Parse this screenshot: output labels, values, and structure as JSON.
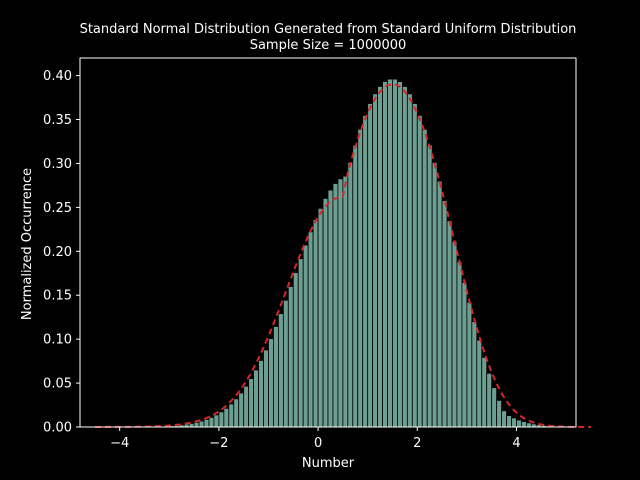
{
  "chart_data": {
    "type": "bar",
    "title": "Standard Normal Distribution Generated from Standard Uniform Distribution",
    "subtitle": "Sample Size = 1000000",
    "xlabel": "Number",
    "ylabel": "Normalized Occurrence",
    "xlim": [
      -4.8,
      5.2
    ],
    "ylim": [
      0,
      0.42
    ],
    "xticks": [
      -4,
      -2,
      0,
      2,
      4
    ],
    "xtick_labels": [
      "−4",
      "−2",
      "0",
      "2",
      "4"
    ],
    "yticks": [
      0.0,
      0.05,
      0.1,
      0.15,
      0.2,
      0.25,
      0.3,
      0.35,
      0.4
    ],
    "ytick_labels": [
      "0.00",
      "0.05",
      "0.10",
      "0.15",
      "0.20",
      "0.25",
      "0.30",
      "0.35",
      "0.40"
    ],
    "grid": false,
    "histogram": {
      "bin_start": -4.5,
      "bin_width": 0.1,
      "values": [
        0.0,
        0.0,
        0.0,
        0.0,
        0.0,
        0.0001,
        0.0001,
        0.0001,
        0.0001,
        0.0002,
        0.0003,
        0.0004,
        0.0006,
        0.0008,
        0.001,
        0.0014,
        0.0018,
        0.0024,
        0.0032,
        0.0041,
        0.0053,
        0.0068,
        0.0086,
        0.011,
        0.0138,
        0.0172,
        0.0213,
        0.0262,
        0.032,
        0.0387,
        0.0464,
        0.0551,
        0.0649,
        0.0758,
        0.0877,
        0.1006,
        0.1144,
        0.129,
        0.1443,
        0.1599,
        0.1758,
        0.1916,
        0.2071,
        0.2221,
        0.2361,
        0.2489,
        0.2602,
        0.2697,
        0.2772,
        0.2825,
        0.2855,
        0.3011,
        0.3209,
        0.3388,
        0.3546,
        0.3682,
        0.3792,
        0.3876,
        0.3932,
        0.396,
        0.396,
        0.3932,
        0.3876,
        0.3792,
        0.3682,
        0.3546,
        0.3388,
        0.3209,
        0.3011,
        0.28,
        0.2577,
        0.2347,
        0.2113,
        0.1879,
        0.1647,
        0.142,
        0.12,
        0.099,
        0.0793,
        0.0611,
        0.0447,
        0.0303,
        0.0185,
        0.013,
        0.0103,
        0.008,
        0.0062,
        0.0047,
        0.0035,
        0.0026,
        0.0019,
        0.0014,
        0.001,
        0.0007,
        0.0005,
        0.0003,
        0.0002,
        0.0001,
        0.0001,
        0.0001,
        0.0
      ],
      "color": "#6d9e92",
      "edge_color": "#000000"
    },
    "curve": {
      "type": "line",
      "x_start": -4.5,
      "x_step": 0.1,
      "y": [
        0.0,
        0.0,
        0.0,
        0.0001,
        0.0001,
        0.0001,
        0.0002,
        0.0002,
        0.0003,
        0.0004,
        0.0004,
        0.0006,
        0.0008,
        0.001,
        0.0013,
        0.0017,
        0.0022,
        0.0028,
        0.0036,
        0.0045,
        0.0058,
        0.0073,
        0.0091,
        0.0115,
        0.0143,
        0.0177,
        0.0219,
        0.0268,
        0.0328,
        0.0397,
        0.0477,
        0.0568,
        0.0669,
        0.0781,
        0.0903,
        0.1034,
        0.1172,
        0.1316,
        0.1464,
        0.1614,
        0.1762,
        0.1907,
        0.2045,
        0.2173,
        0.229,
        0.2392,
        0.2476,
        0.2541,
        0.2587,
        0.2613,
        0.2625,
        0.2895,
        0.3097,
        0.3275,
        0.3435,
        0.3575,
        0.369,
        0.3782,
        0.385,
        0.3892,
        0.39,
        0.3892,
        0.385,
        0.3782,
        0.369,
        0.3575,
        0.3435,
        0.3275,
        0.3097,
        0.2895,
        0.2685,
        0.2461,
        0.2232,
        0.2,
        0.177,
        0.1545,
        0.133,
        0.1128,
        0.094,
        0.0771,
        0.0621,
        0.0492,
        0.0383,
        0.0293,
        0.022,
        0.0162,
        0.0118,
        0.0084,
        0.0059,
        0.0041,
        0.0028,
        0.0019,
        0.0012,
        0.0008,
        0.0005,
        0.0003,
        0.0002,
        0.0001,
        0.0001,
        0.0,
        0.0
      ],
      "color": "#d62728",
      "style": "dashed"
    }
  }
}
